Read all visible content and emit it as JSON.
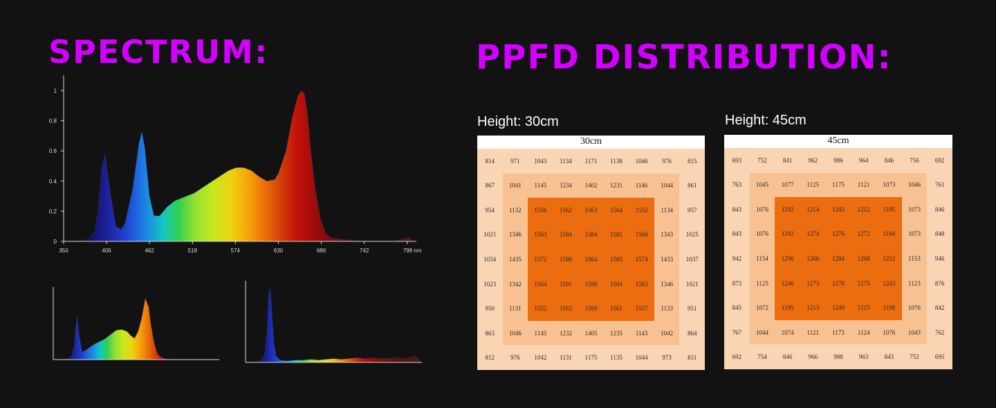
{
  "headings": {
    "spectrum": "SPECTRUM:",
    "ppfd": "PPFD DISTRIBUTION:"
  },
  "ppfd": {
    "grid30": {
      "label": "Height: 30cm",
      "title": "30cm",
      "rows": [
        [
          814,
          971,
          1043,
          1134,
          1171,
          1138,
          1046,
          976,
          815
        ],
        [
          867,
          1041,
          1145,
          1234,
          1402,
          1231,
          1146,
          1044,
          861
        ],
        [
          954,
          1132,
          1556,
          1562,
          1563,
          1564,
          1552,
          1134,
          957
        ],
        [
          1021,
          1346,
          1563,
          1584,
          1584,
          1581,
          1568,
          1343,
          1025
        ],
        [
          1034,
          1435,
          1572,
          1586,
          1664,
          1585,
          1574,
          1433,
          1037
        ],
        [
          1023,
          1342,
          1564,
          1591,
          1596,
          1594,
          1563,
          1346,
          1021
        ],
        [
          950,
          1131,
          1552,
          1563,
          1569,
          1561,
          1557,
          1133,
          951
        ],
        [
          863,
          1046,
          1145,
          1232,
          1405,
          1235,
          1143,
          1042,
          864
        ],
        [
          812,
          976,
          1042,
          1131,
          1175,
          1135,
          1044,
          973,
          811
        ]
      ]
    },
    "grid45": {
      "label": "Height: 45cm",
      "title": "45cm",
      "rows": [
        [
          693,
          752,
          841,
          962,
          986,
          964,
          846,
          756,
          692
        ],
        [
          763,
          1045,
          1077,
          1125,
          1175,
          1121,
          1073,
          1046,
          761
        ],
        [
          843,
          1076,
          1192,
          1214,
          1243,
          1212,
          1195,
          1073,
          846
        ],
        [
          843,
          1076,
          1192,
          1274,
          1276,
          1272,
          1194,
          1073,
          848
        ],
        [
          942,
          1154,
          1256,
          1266,
          1284,
          1268,
          1252,
          1153,
          946
        ],
        [
          873,
          1125,
          1246,
          1273,
          1278,
          1275,
          1243,
          1123,
          876
        ],
        [
          845,
          1072,
          1195,
          1213,
          1249,
          1215,
          1198,
          1076,
          842
        ],
        [
          767,
          1044,
          1074,
          1121,
          1173,
          1124,
          1076,
          1043,
          762
        ],
        [
          692,
          754,
          846,
          966,
          988,
          963,
          843,
          752,
          695
        ]
      ]
    },
    "zone_colors": [
      "#fad5b4",
      "#f8c191",
      "#ec6c10"
    ]
  },
  "chart_data": [
    {
      "type": "area",
      "xlim": [
        350,
        810
      ],
      "ylim": [
        0,
        1
      ],
      "x_ticks": [
        350,
        406,
        462,
        518,
        574,
        630,
        686,
        742,
        798
      ],
      "x_tick_labels": [
        "350",
        "406",
        "462",
        "518",
        "574",
        "630",
        "686",
        "742",
        "798 nm"
      ],
      "y_ticks": [
        0,
        0.2,
        0.4,
        0.6,
        0.8,
        1
      ],
      "y_tick_labels": [
        "0",
        "0.2",
        "0.4",
        "0.6",
        "0.8",
        "1"
      ],
      "x": [
        365,
        380,
        390,
        395,
        400,
        404,
        410,
        418,
        425,
        430,
        440,
        448,
        452,
        456,
        462,
        468,
        475,
        485,
        495,
        505,
        520,
        535,
        550,
        565,
        575,
        585,
        595,
        605,
        615,
        625,
        630,
        640,
        648,
        655,
        660,
        664,
        668,
        672,
        678,
        685,
        692,
        700,
        720,
        740,
        760,
        780,
        795,
        800,
        805
      ],
      "y": [
        0,
        0.01,
        0.06,
        0.2,
        0.5,
        0.58,
        0.35,
        0.1,
        0.08,
        0.12,
        0.35,
        0.65,
        0.73,
        0.62,
        0.3,
        0.17,
        0.17,
        0.23,
        0.27,
        0.29,
        0.32,
        0.37,
        0.42,
        0.47,
        0.49,
        0.49,
        0.47,
        0.43,
        0.4,
        0.41,
        0.45,
        0.6,
        0.82,
        0.96,
        1.0,
        0.98,
        0.85,
        0.62,
        0.35,
        0.15,
        0.05,
        0.02,
        0.01,
        0.0,
        0.0,
        0.0,
        0.02,
        0.03,
        0.0
      ]
    },
    {
      "type": "area",
      "xlim": [
        350,
        810
      ],
      "ylim": [
        0,
        1
      ],
      "x": [
        365,
        390,
        400,
        408,
        412,
        416,
        422,
        430,
        440,
        455,
        470,
        490,
        510,
        525,
        540,
        555,
        565,
        575,
        585,
        595,
        605,
        615,
        620,
        628,
        635,
        640,
        648,
        656,
        665,
        680,
        700,
        800
      ],
      "y": [
        0,
        0.01,
        0.05,
        0.2,
        0.45,
        0.66,
        0.35,
        0.12,
        0.14,
        0.2,
        0.25,
        0.3,
        0.38,
        0.44,
        0.45,
        0.42,
        0.36,
        0.32,
        0.42,
        0.62,
        0.92,
        0.78,
        0.55,
        0.3,
        0.15,
        0.08,
        0.04,
        0.02,
        0.01,
        0.0,
        0.0,
        0.0
      ]
    },
    {
      "type": "area",
      "xlim": [
        350,
        810
      ],
      "ylim": [
        0,
        1
      ],
      "x": [
        365,
        390,
        400,
        406,
        410,
        414,
        418,
        424,
        430,
        440,
        460,
        480,
        500,
        520,
        540,
        560,
        580,
        600,
        620,
        640,
        660,
        680,
        700,
        720,
        740,
        760,
        780,
        790,
        795,
        800,
        805
      ],
      "y": [
        0,
        0.02,
        0.1,
        0.4,
        0.85,
        0.97,
        0.7,
        0.25,
        0.08,
        0.03,
        0.02,
        0.03,
        0.03,
        0.04,
        0.03,
        0.04,
        0.05,
        0.04,
        0.05,
        0.06,
        0.05,
        0.06,
        0.05,
        0.05,
        0.06,
        0.05,
        0.06,
        0.08,
        0.07,
        0.05,
        0.0
      ]
    }
  ]
}
